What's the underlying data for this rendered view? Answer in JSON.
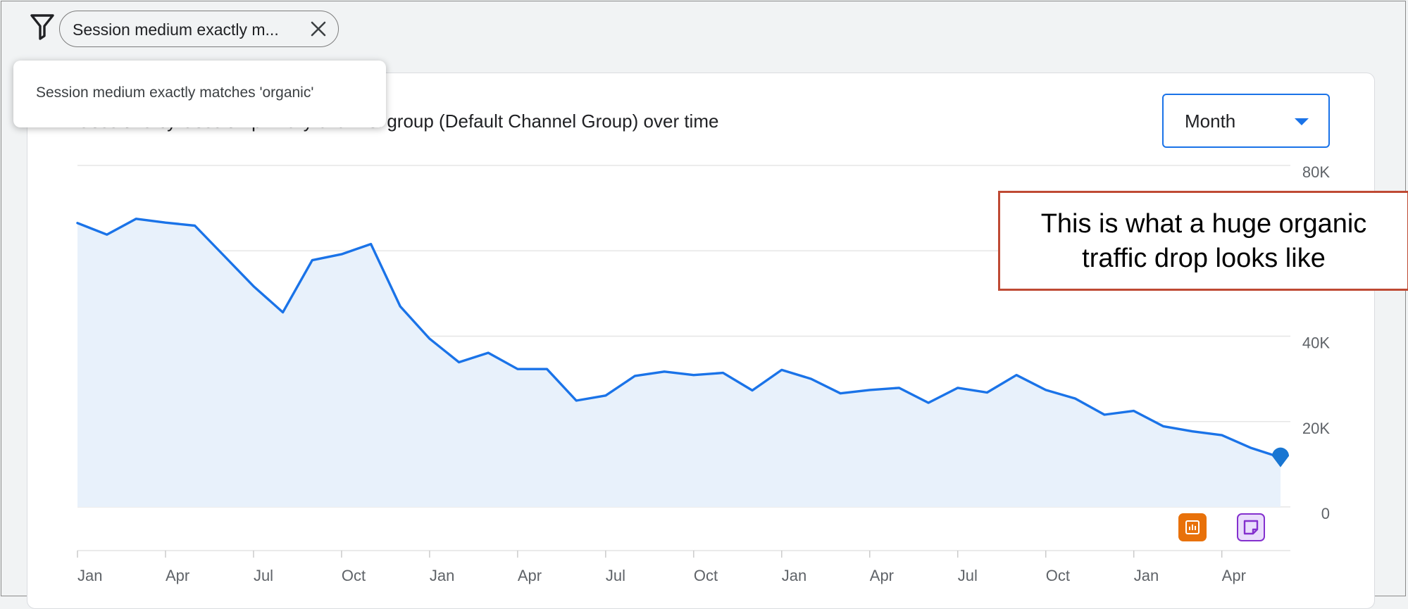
{
  "filter": {
    "chip_label": "Session medium exactly m...",
    "tooltip": "Session medium exactly matches 'organic'"
  },
  "card": {
    "title": "Sessions by Session primary channel group (Default Channel Group) over time",
    "period_select": "Month"
  },
  "callout": "This is what a huge organic traffic drop looks like",
  "icons": {
    "filter": "filter-funnel-icon",
    "close": "close-icon",
    "caret": "caret-down-icon",
    "insight": "insights-icon",
    "annotation": "note-icon"
  },
  "colors": {
    "line": "#1a73e8",
    "area": "#e8f1fb",
    "accent": "#1a73e8",
    "callout_border": "#bf4a34",
    "insight_badge": "#e8710a",
    "note_badge": "#8430ce"
  },
  "chart_data": {
    "type": "area",
    "title": "Sessions by Session primary channel group (Default Channel Group) over time",
    "xlabel": "",
    "ylabel": "",
    "ylim": [
      0,
      80000
    ],
    "y_ticks": [
      {
        "value": 0,
        "label": "0"
      },
      {
        "value": 20000,
        "label": "20K"
      },
      {
        "value": 40000,
        "label": "40K"
      },
      {
        "value": 60000,
        "label": ""
      },
      {
        "value": 80000,
        "label": "80K"
      }
    ],
    "x_tick_labels": [
      {
        "index": 0,
        "label": "Jan"
      },
      {
        "index": 3,
        "label": "Apr"
      },
      {
        "index": 6,
        "label": "Jul"
      },
      {
        "index": 9,
        "label": "Oct"
      },
      {
        "index": 12,
        "label": "Jan"
      },
      {
        "index": 15,
        "label": "Apr"
      },
      {
        "index": 18,
        "label": "Jul"
      },
      {
        "index": 21,
        "label": "Oct"
      },
      {
        "index": 24,
        "label": "Jan"
      },
      {
        "index": 27,
        "label": "Apr"
      },
      {
        "index": 30,
        "label": "Jul"
      },
      {
        "index": 33,
        "label": "Oct"
      },
      {
        "index": 36,
        "label": "Jan"
      },
      {
        "index": 39,
        "label": "Apr"
      }
    ],
    "grid": true,
    "series": [
      {
        "name": "organic",
        "values": [
          66500,
          63800,
          67500,
          66600,
          65900,
          58800,
          51700,
          45600,
          57800,
          59200,
          61600,
          47000,
          39400,
          33900,
          36100,
          32300,
          32300,
          24900,
          26100,
          30700,
          31700,
          30900,
          31400,
          27300,
          32100,
          30000,
          26600,
          27400,
          27900,
          24400,
          27900,
          26800,
          30900,
          27400,
          25400,
          21600,
          22500,
          18900,
          17700,
          16800,
          13800,
          11600
        ]
      }
    ]
  }
}
